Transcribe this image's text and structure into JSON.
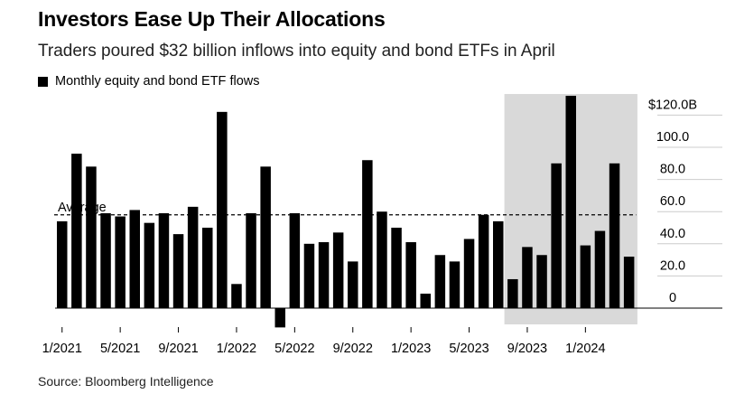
{
  "header": {
    "title": "Investors Ease Up Their Allocations",
    "subtitle": "Traders poured $32 billion inflows into equity and bond ETFs in April"
  },
  "legend": {
    "label": "Monthly equity and bond ETF flows",
    "color": "#000000"
  },
  "source": "Source: Bloomberg Intelligence",
  "chart_data": {
    "type": "bar",
    "categories": [
      "1/2021",
      "2/2021",
      "3/2021",
      "4/2021",
      "5/2021",
      "6/2021",
      "7/2021",
      "8/2021",
      "9/2021",
      "10/2021",
      "11/2021",
      "12/2021",
      "1/2022",
      "2/2022",
      "3/2022",
      "4/2022",
      "5/2022",
      "6/2022",
      "7/2022",
      "8/2022",
      "9/2022",
      "10/2022",
      "11/2022",
      "12/2022",
      "1/2023",
      "2/2023",
      "3/2023",
      "4/2023",
      "5/2023",
      "6/2023",
      "7/2023",
      "8/2023",
      "9/2023",
      "10/2023",
      "11/2023",
      "12/2023",
      "1/2024",
      "2/2024",
      "3/2024",
      "4/2024"
    ],
    "values": [
      54,
      96,
      88,
      59,
      57,
      61,
      53,
      59,
      46,
      63,
      50,
      122,
      15,
      59,
      88,
      -12,
      59,
      40,
      41,
      47,
      29,
      92,
      60,
      50,
      41,
      9,
      33,
      29,
      43,
      58,
      54,
      18,
      38,
      33,
      90,
      132,
      39,
      48,
      90,
      32
    ],
    "series": [
      {
        "name": "Monthly equity and bond ETF flows",
        "color": "#000000"
      }
    ],
    "average": 58,
    "average_label": "Average",
    "yticks": [
      0,
      20,
      40,
      60,
      80,
      100,
      120
    ],
    "ytick_labels": [
      "0",
      "20.0",
      "40.0",
      "60.0",
      "80.0",
      "100.0",
      "$120.0B"
    ],
    "ylim": [
      -14,
      132
    ],
    "xtick_labels": [
      "1/2021",
      "5/2021",
      "9/2021",
      "1/2022",
      "5/2022",
      "9/2022",
      "1/2023",
      "5/2023",
      "9/2023",
      "1/2024"
    ],
    "xtick_index": [
      0,
      4,
      8,
      12,
      16,
      20,
      24,
      28,
      32,
      36
    ],
    "highlight": {
      "from_index": 31,
      "to_index": 39,
      "color": "#d9d9d9"
    },
    "grid": false,
    "legend_position": "top-left"
  }
}
